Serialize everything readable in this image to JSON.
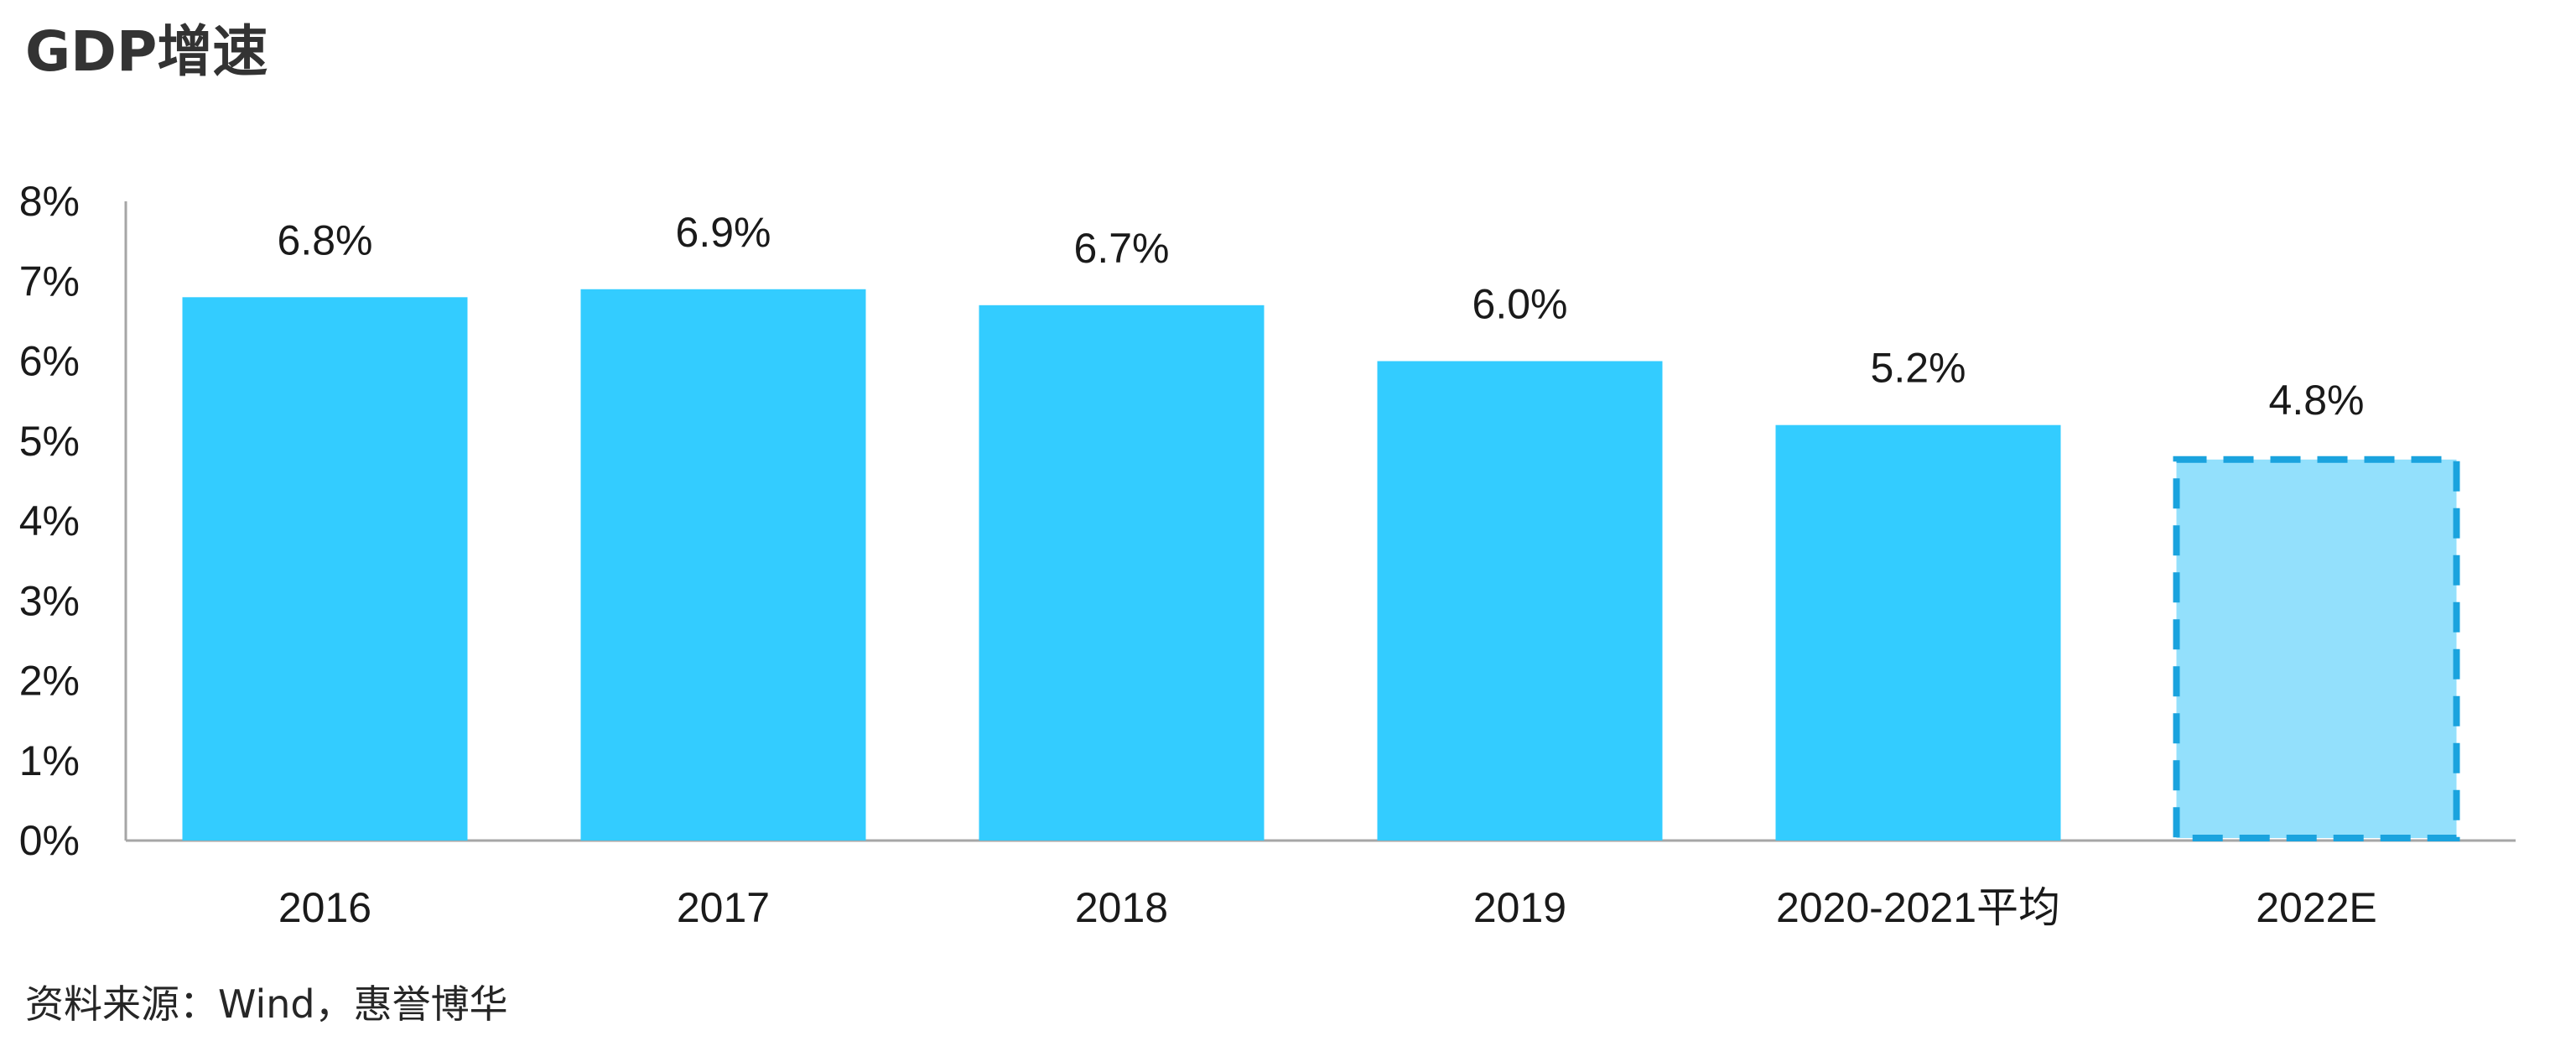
{
  "chart_title": "GDP增速",
  "source_note": "资料来源：Wind，惠誉博华",
  "colors": {
    "bar": "#33CCFF",
    "forecast_fill": "#93E0FC",
    "forecast_border": "#1AA3DE",
    "axis": "#A6A6A6",
    "text": "#1A1A1A"
  },
  "chart_data": {
    "type": "bar",
    "title": "GDP增速",
    "xlabel": "",
    "ylabel": "",
    "categories": [
      "2016",
      "2017",
      "2018",
      "2019",
      "2020-2021平均",
      "2022E"
    ],
    "values": [
      6.8,
      6.9,
      6.7,
      6.0,
      5.2,
      4.8
    ],
    "data_labels": [
      "6.8%",
      "6.9%",
      "6.7%",
      "6.0%",
      "5.2%",
      "4.8%"
    ],
    "forecast": [
      false,
      false,
      false,
      false,
      false,
      true
    ],
    "ylim": [
      0,
      8
    ],
    "yticks": [
      0,
      1,
      2,
      3,
      4,
      5,
      6,
      7,
      8
    ],
    "ytick_labels": [
      "0%",
      "1%",
      "2%",
      "3%",
      "4%",
      "5%",
      "6%",
      "7%",
      "8%"
    ],
    "grid": false,
    "legend": "none"
  }
}
